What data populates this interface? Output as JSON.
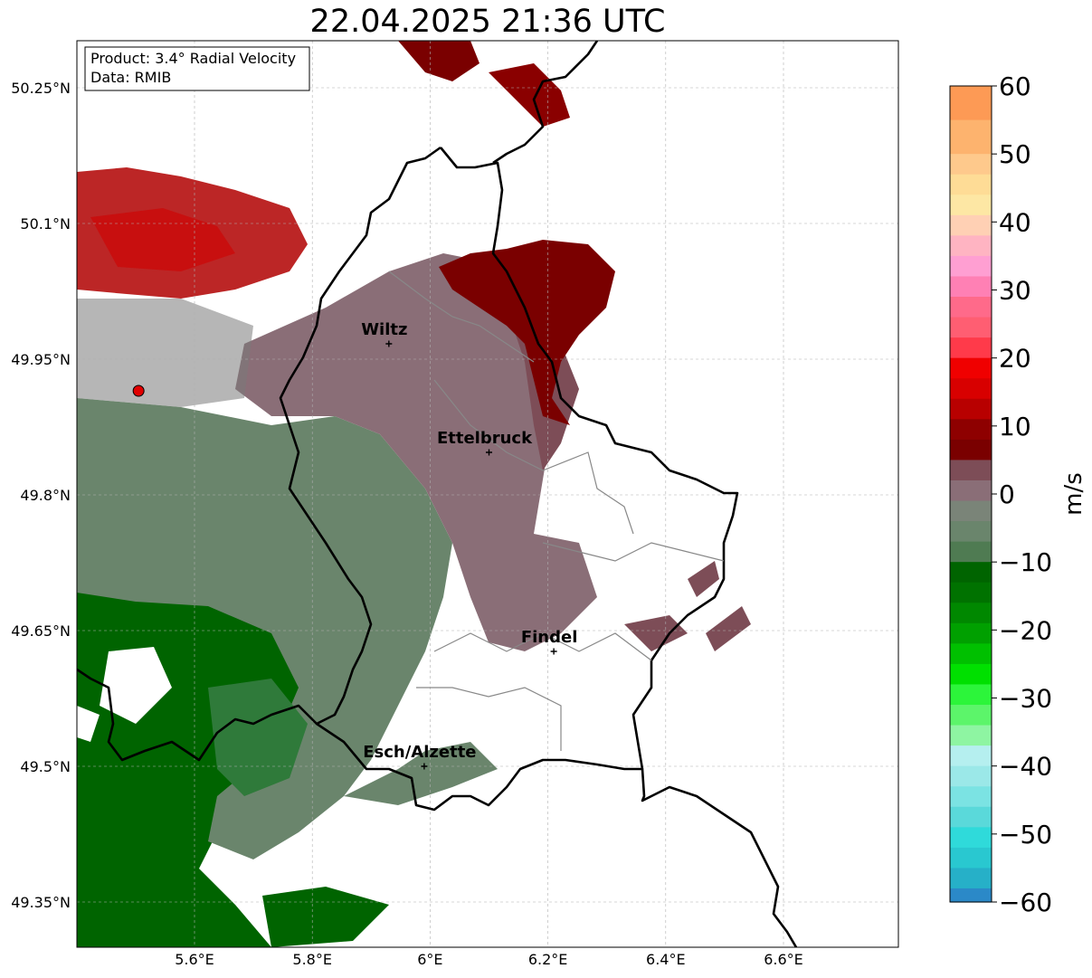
{
  "title": "22.04.2025 21:36 UTC",
  "info_box": {
    "product": "Product: 3.4° Radial Velocity",
    "data": "Data: RMIB"
  },
  "map": {
    "lon_range": [
      5.4,
      6.8
    ],
    "lat_range": [
      49.3,
      50.3
    ],
    "lat_ticks": [
      {
        "value": 50.25,
        "label": "50.25°N"
      },
      {
        "value": 50.1,
        "label": "50.1°N"
      },
      {
        "value": 49.95,
        "label": "49.95°N"
      },
      {
        "value": 49.8,
        "label": "49.8°N"
      },
      {
        "value": 49.65,
        "label": "49.65°N"
      },
      {
        "value": 49.5,
        "label": "49.5°N"
      },
      {
        "value": 49.35,
        "label": "49.35°N"
      }
    ],
    "lon_ticks": [
      {
        "value": 5.6,
        "label": "5.6°E"
      },
      {
        "value": 5.8,
        "label": "5.8°E"
      },
      {
        "value": 6.0,
        "label": "6°E"
      },
      {
        "value": 6.2,
        "label": "6.2°E"
      },
      {
        "value": 6.4,
        "label": "6.4°E"
      },
      {
        "value": 6.6,
        "label": "6.6°E"
      }
    ],
    "grid": true,
    "radar_site": {
      "lon": 5.505,
      "lat": 49.915,
      "color": "#e00000"
    },
    "cities": [
      {
        "name": "Wiltz",
        "lon": 5.93,
        "lat": 49.967
      },
      {
        "name": "Ettelbruck",
        "lon": 6.1,
        "lat": 49.847
      },
      {
        "name": "Findel",
        "lon": 6.21,
        "lat": 49.627
      },
      {
        "name": "Esch/Alzette",
        "lon": 5.99,
        "lat": 49.5
      }
    ]
  },
  "colorbar": {
    "label": "m/s",
    "vmin": -60,
    "vmax": 60,
    "ticks": [
      {
        "value": 60,
        "label": "60"
      },
      {
        "value": 50,
        "label": "50"
      },
      {
        "value": 40,
        "label": "40"
      },
      {
        "value": 30,
        "label": "30"
      },
      {
        "value": 20,
        "label": "20"
      },
      {
        "value": 10,
        "label": "10"
      },
      {
        "value": 0,
        "label": "0"
      },
      {
        "value": -10,
        "label": "−10"
      },
      {
        "value": -20,
        "label": "−20"
      },
      {
        "value": -30,
        "label": "−30"
      },
      {
        "value": -40,
        "label": "−40"
      },
      {
        "value": -50,
        "label": "−50"
      },
      {
        "value": -60,
        "label": "−60"
      }
    ],
    "colors": {
      "orange": "#fda662",
      "light_orange": "#fec98c",
      "yellow": "#fee6a0",
      "pink": "#ff8fc8",
      "salmon": "#ff5e72",
      "red": "#f00000",
      "dark_red": "#7a0000",
      "maroon_grey": "#7d4d57",
      "grey_mauve": "#8a6e77",
      "grey_green": "#6a856c",
      "green_dark": "#006400",
      "green": "#00c000",
      "green_light": "#5cf56a",
      "cyan_light": "#b5efef",
      "cyan": "#2fdada",
      "blue": "#2b89c8"
    }
  }
}
